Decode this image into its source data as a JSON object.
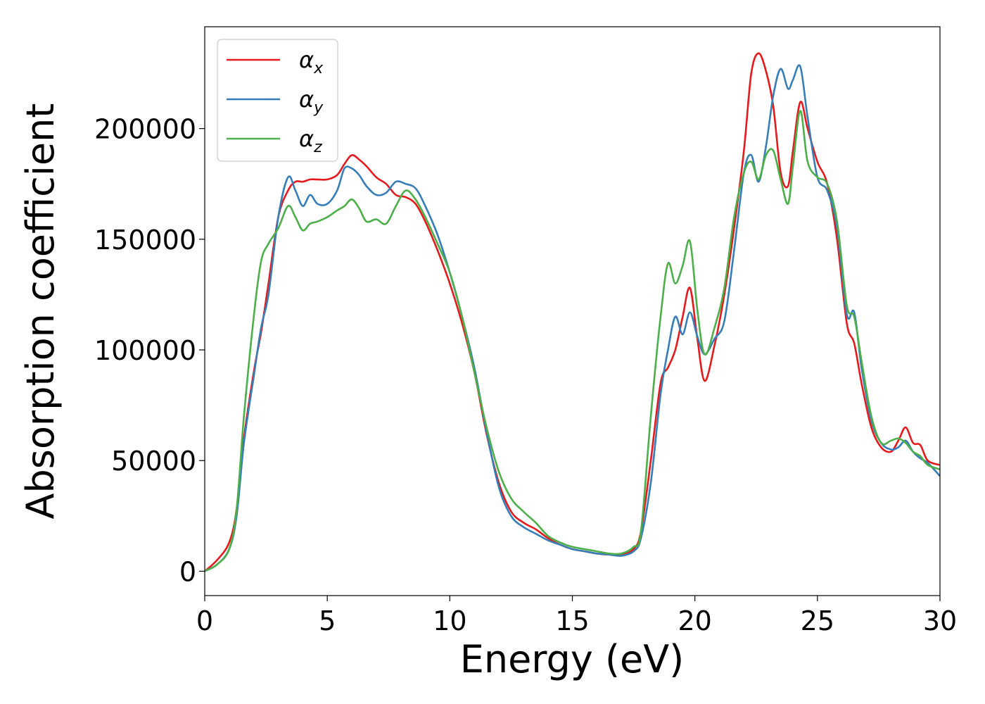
{
  "chart_data": {
    "type": "line",
    "title": "",
    "xlabel": "Energy (eV)",
    "ylabel": "Absorption coefficient",
    "xlim": [
      0,
      30
    ],
    "ylim": [
      -11000,
      246000
    ],
    "xticks": [
      0,
      5,
      10,
      15,
      20,
      25,
      30
    ],
    "yticks": [
      0,
      50000,
      100000,
      150000,
      200000
    ],
    "grid": false,
    "legend_position": "top-left",
    "series": [
      {
        "name": "α_x",
        "symbol": "α",
        "subscript": "x",
        "color": "#e41a1c",
        "x": [
          0,
          0.5,
          1.0,
          1.3,
          1.6,
          2.0,
          2.3,
          2.6,
          3.0,
          3.4,
          3.7,
          4.0,
          4.3,
          4.6,
          5.0,
          5.4,
          5.7,
          6.0,
          6.3,
          6.6,
          7.0,
          7.4,
          7.8,
          8.2,
          8.6,
          9.0,
          9.5,
          10.0,
          10.5,
          11.0,
          11.5,
          12.0,
          12.5,
          13.0,
          13.5,
          14.0,
          14.5,
          15.0,
          15.5,
          16.0,
          16.5,
          17.0,
          17.5,
          17.8,
          18.2,
          18.6,
          18.9,
          19.2,
          19.5,
          19.8,
          20.1,
          20.4,
          20.8,
          21.2,
          21.6,
          22.0,
          22.3,
          22.6,
          22.9,
          23.2,
          23.5,
          23.8,
          24.0,
          24.3,
          24.6,
          25.0,
          25.4,
          25.8,
          26.2,
          26.5,
          26.8,
          27.2,
          27.6,
          28.0,
          28.3,
          28.6,
          28.9,
          29.2,
          29.5,
          30.0
        ],
        "values": [
          0,
          5000,
          13000,
          28000,
          60000,
          90000,
          108000,
          130000,
          160000,
          172000,
          176000,
          176000,
          177000,
          177000,
          177000,
          179000,
          184000,
          188000,
          186000,
          183000,
          178000,
          175000,
          170000,
          169000,
          166000,
          158000,
          145000,
          130000,
          112000,
          90000,
          62000,
          40000,
          27000,
          22000,
          19000,
          15000,
          12000,
          10000,
          9000,
          8000,
          7500,
          7500,
          10000,
          18000,
          50000,
          85000,
          92000,
          100000,
          115000,
          128000,
          105000,
          86000,
          102000,
          125000,
          155000,
          190000,
          225000,
          234000,
          226000,
          210000,
          180000,
          174000,
          190000,
          212000,
          200000,
          185000,
          175000,
          150000,
          112000,
          103000,
          85000,
          65000,
          56000,
          54000,
          59000,
          65000,
          58000,
          57000,
          50000,
          48000
        ]
      },
      {
        "name": "α_y",
        "symbol": "α",
        "subscript": "y",
        "color": "#377eb8",
        "x": [
          0,
          0.5,
          1.0,
          1.3,
          1.6,
          2.0,
          2.3,
          2.6,
          3.0,
          3.4,
          3.7,
          4.0,
          4.3,
          4.6,
          5.0,
          5.4,
          5.7,
          6.0,
          6.3,
          6.6,
          7.0,
          7.4,
          7.8,
          8.2,
          8.6,
          9.0,
          9.5,
          10.0,
          10.5,
          11.0,
          11.5,
          12.0,
          12.5,
          13.0,
          13.5,
          14.0,
          14.5,
          15.0,
          15.5,
          16.0,
          16.5,
          17.0,
          17.5,
          17.8,
          18.2,
          18.6,
          18.9,
          19.2,
          19.5,
          19.8,
          20.1,
          20.4,
          20.8,
          21.2,
          21.6,
          22.0,
          22.3,
          22.6,
          22.9,
          23.2,
          23.5,
          23.8,
          24.0,
          24.3,
          24.6,
          25.0,
          25.4,
          25.8,
          26.2,
          26.5,
          26.8,
          27.2,
          27.6,
          28.0,
          28.3,
          28.6,
          28.9,
          29.2,
          29.5,
          30.0
        ],
        "values": [
          0,
          3000,
          10000,
          25000,
          58000,
          88000,
          110000,
          125000,
          160000,
          178000,
          172000,
          165000,
          170000,
          166000,
          166000,
          172000,
          182000,
          182000,
          179000,
          174000,
          170000,
          171000,
          176000,
          175000,
          173000,
          165000,
          152000,
          135000,
          115000,
          92000,
          63000,
          38000,
          25000,
          20000,
          17000,
          14000,
          12000,
          10000,
          9000,
          8000,
          7500,
          7000,
          9000,
          15000,
          40000,
          80000,
          100000,
          115000,
          107000,
          117000,
          106000,
          98000,
          105000,
          113000,
          145000,
          180000,
          188000,
          176000,
          192000,
          215000,
          227000,
          218000,
          222000,
          228000,
          205000,
          178000,
          172000,
          155000,
          116000,
          117000,
          92000,
          68000,
          58000,
          55000,
          56000,
          59000,
          54000,
          51000,
          49000,
          43000
        ]
      },
      {
        "name": "α_z",
        "symbol": "α",
        "subscript": "z",
        "color": "#4daf4a",
        "x": [
          0,
          0.5,
          1.0,
          1.3,
          1.6,
          2.0,
          2.3,
          2.6,
          3.0,
          3.4,
          3.7,
          4.0,
          4.3,
          4.6,
          5.0,
          5.4,
          5.7,
          6.0,
          6.3,
          6.6,
          7.0,
          7.4,
          7.8,
          8.2,
          8.6,
          9.0,
          9.5,
          10.0,
          10.5,
          11.0,
          11.5,
          12.0,
          12.5,
          13.0,
          13.5,
          14.0,
          14.5,
          15.0,
          15.5,
          16.0,
          16.5,
          17.0,
          17.5,
          17.8,
          18.2,
          18.6,
          18.9,
          19.2,
          19.5,
          19.8,
          20.1,
          20.4,
          20.8,
          21.2,
          21.6,
          22.0,
          22.3,
          22.6,
          22.9,
          23.2,
          23.5,
          23.8,
          24.0,
          24.3,
          24.6,
          25.0,
          25.4,
          25.8,
          26.2,
          26.5,
          26.8,
          27.2,
          27.6,
          28.0,
          28.3,
          28.6,
          28.9,
          29.2,
          29.5,
          30.0
        ],
        "values": [
          0,
          3000,
          10000,
          28000,
          70000,
          115000,
          140000,
          148000,
          155000,
          165000,
          160000,
          154000,
          157000,
          158000,
          160000,
          163000,
          165000,
          168000,
          164000,
          158000,
          159000,
          157000,
          165000,
          172000,
          168000,
          160000,
          148000,
          135000,
          115000,
          90000,
          65000,
          45000,
          33000,
          27000,
          22000,
          16000,
          13000,
          11000,
          10000,
          9000,
          8000,
          8000,
          11000,
          18000,
          70000,
          115000,
          139000,
          130000,
          138000,
          149000,
          118000,
          98000,
          110000,
          128000,
          160000,
          180000,
          185000,
          177000,
          188000,
          190000,
          177000,
          166000,
          183000,
          208000,
          185000,
          178000,
          175000,
          158000,
          120000,
          115000,
          95000,
          70000,
          58000,
          59000,
          60000,
          58000,
          54000,
          52000,
          48000,
          46000
        ]
      }
    ]
  }
}
